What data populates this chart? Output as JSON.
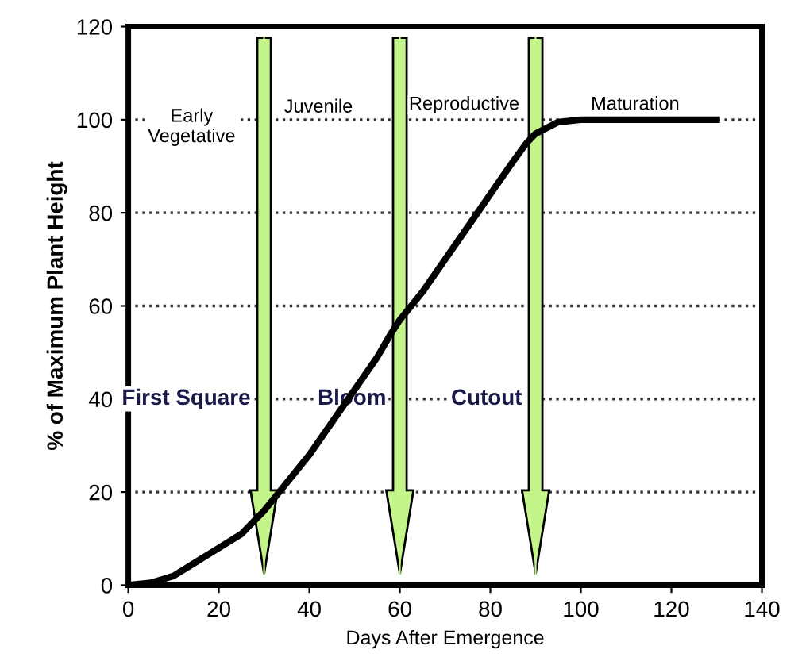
{
  "chart_data": {
    "type": "line",
    "xlabel": "Days After Emergence",
    "ylabel": "% of Maximum Plant Height",
    "x": [
      0,
      5,
      10,
      15,
      20,
      25,
      30,
      35,
      40,
      45,
      50,
      55,
      58,
      60,
      65,
      70,
      75,
      80,
      85,
      88,
      90,
      95,
      100,
      110,
      120,
      130
    ],
    "series": [
      {
        "color": "#000000",
        "values": [
          0,
          0.5,
          2,
          5,
          8,
          11,
          16,
          22,
          28,
          35,
          42,
          49,
          54,
          57,
          63,
          70,
          77,
          84,
          91,
          95,
          97,
          99.5,
          100,
          100,
          100,
          100
        ]
      }
    ],
    "xlim": [
      0,
      140
    ],
    "ylim": [
      0,
      120
    ],
    "xticks": [
      0,
      20,
      40,
      60,
      80,
      100,
      120,
      140
    ],
    "yticks": [
      0,
      20,
      40,
      60,
      80,
      100,
      120
    ],
    "grid": "y",
    "marker": "none",
    "line_style": "solid",
    "ref_lines": [
      {
        "axis": "x",
        "value": 30,
        "label": "First Square",
        "color": "#c4f58a"
      },
      {
        "axis": "x",
        "value": 60,
        "label": "Bloom",
        "color": "#c4f58a"
      },
      {
        "axis": "x",
        "value": 90,
        "label": "Cutout",
        "color": "#c4f58a"
      }
    ],
    "annotations": [
      "Early\nVegetative",
      "Juvenile",
      "Reproductive",
      "Maturation"
    ]
  }
}
